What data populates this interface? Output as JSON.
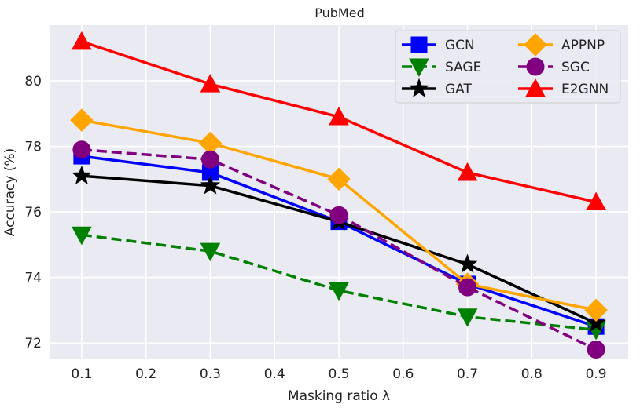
{
  "chart_data": {
    "type": "line",
    "title": "PubMed",
    "xlabel": "Masking ratio λ",
    "ylabel": "Accuracy (%)",
    "xlim": [
      0.05,
      0.95
    ],
    "ylim": [
      71.5,
      81.7
    ],
    "x_ticks": [
      "0.1",
      "0.2",
      "0.3",
      "0.4",
      "0.5",
      "0.6",
      "0.7",
      "0.8",
      "0.9"
    ],
    "y_ticks": [
      "72",
      "74",
      "76",
      "78",
      "80"
    ],
    "grid": true,
    "legend_position": "top-right",
    "legend_columns": 2,
    "x": [
      0.1,
      0.3,
      0.5,
      0.7,
      0.9
    ],
    "series": [
      {
        "name": "GCN",
        "values": [
          77.7,
          77.2,
          75.7,
          73.8,
          72.5
        ],
        "color": "#0000ff",
        "linestyle": "solid",
        "marker": "square"
      },
      {
        "name": "SAGE",
        "values": [
          75.3,
          74.8,
          73.6,
          72.8,
          72.4
        ],
        "color": "#008000",
        "linestyle": "dashed",
        "marker": "triangle-down"
      },
      {
        "name": "GAT",
        "values": [
          77.1,
          76.8,
          75.7,
          74.4,
          72.6
        ],
        "color": "#000000",
        "linestyle": "solid",
        "marker": "star"
      },
      {
        "name": "APPNP",
        "values": [
          78.8,
          78.1,
          77.0,
          73.8,
          73.0
        ],
        "color": "#ffa500",
        "linestyle": "solid",
        "marker": "diamond"
      },
      {
        "name": "SGC",
        "values": [
          77.9,
          77.6,
          75.9,
          73.7,
          71.8
        ],
        "color": "#800080",
        "linestyle": "dashed",
        "marker": "circle"
      },
      {
        "name": "E2GNN",
        "values": [
          81.2,
          79.9,
          78.9,
          77.2,
          76.3
        ],
        "color": "#ff0000",
        "linestyle": "solid",
        "marker": "triangle-up"
      }
    ]
  }
}
